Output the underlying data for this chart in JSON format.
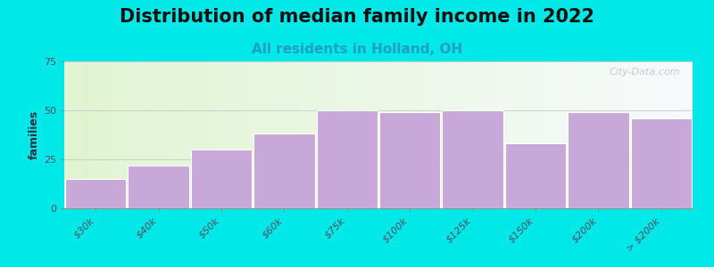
{
  "title": "Distribution of median family income in 2022",
  "subtitle": "All residents in Holland, OH",
  "categories": [
    "$30k",
    "$40k",
    "$50k",
    "$60k",
    "$75k",
    "$100k",
    "$125k",
    "$150k",
    "$200k",
    "> $200k"
  ],
  "values": [
    15,
    22,
    30,
    38,
    50,
    49,
    50,
    33,
    49,
    46
  ],
  "bar_color": "#c8a8d8",
  "bar_edge_color": "#ffffff",
  "background_color": "#00e8e8",
  "plot_bg_color": "#f5f8f2",
  "ylabel": "families",
  "ylim": [
    0,
    75
  ],
  "yticks": [
    0,
    25,
    50,
    75
  ],
  "title_fontsize": 15,
  "subtitle_fontsize": 11,
  "ylabel_fontsize": 9,
  "tick_fontsize": 8,
  "watermark_text": "City-Data.com",
  "watermark_color": "#b8c4cc",
  "subtitle_color": "#20a0c0",
  "title_color": "#101010",
  "tick_color": "#505060"
}
